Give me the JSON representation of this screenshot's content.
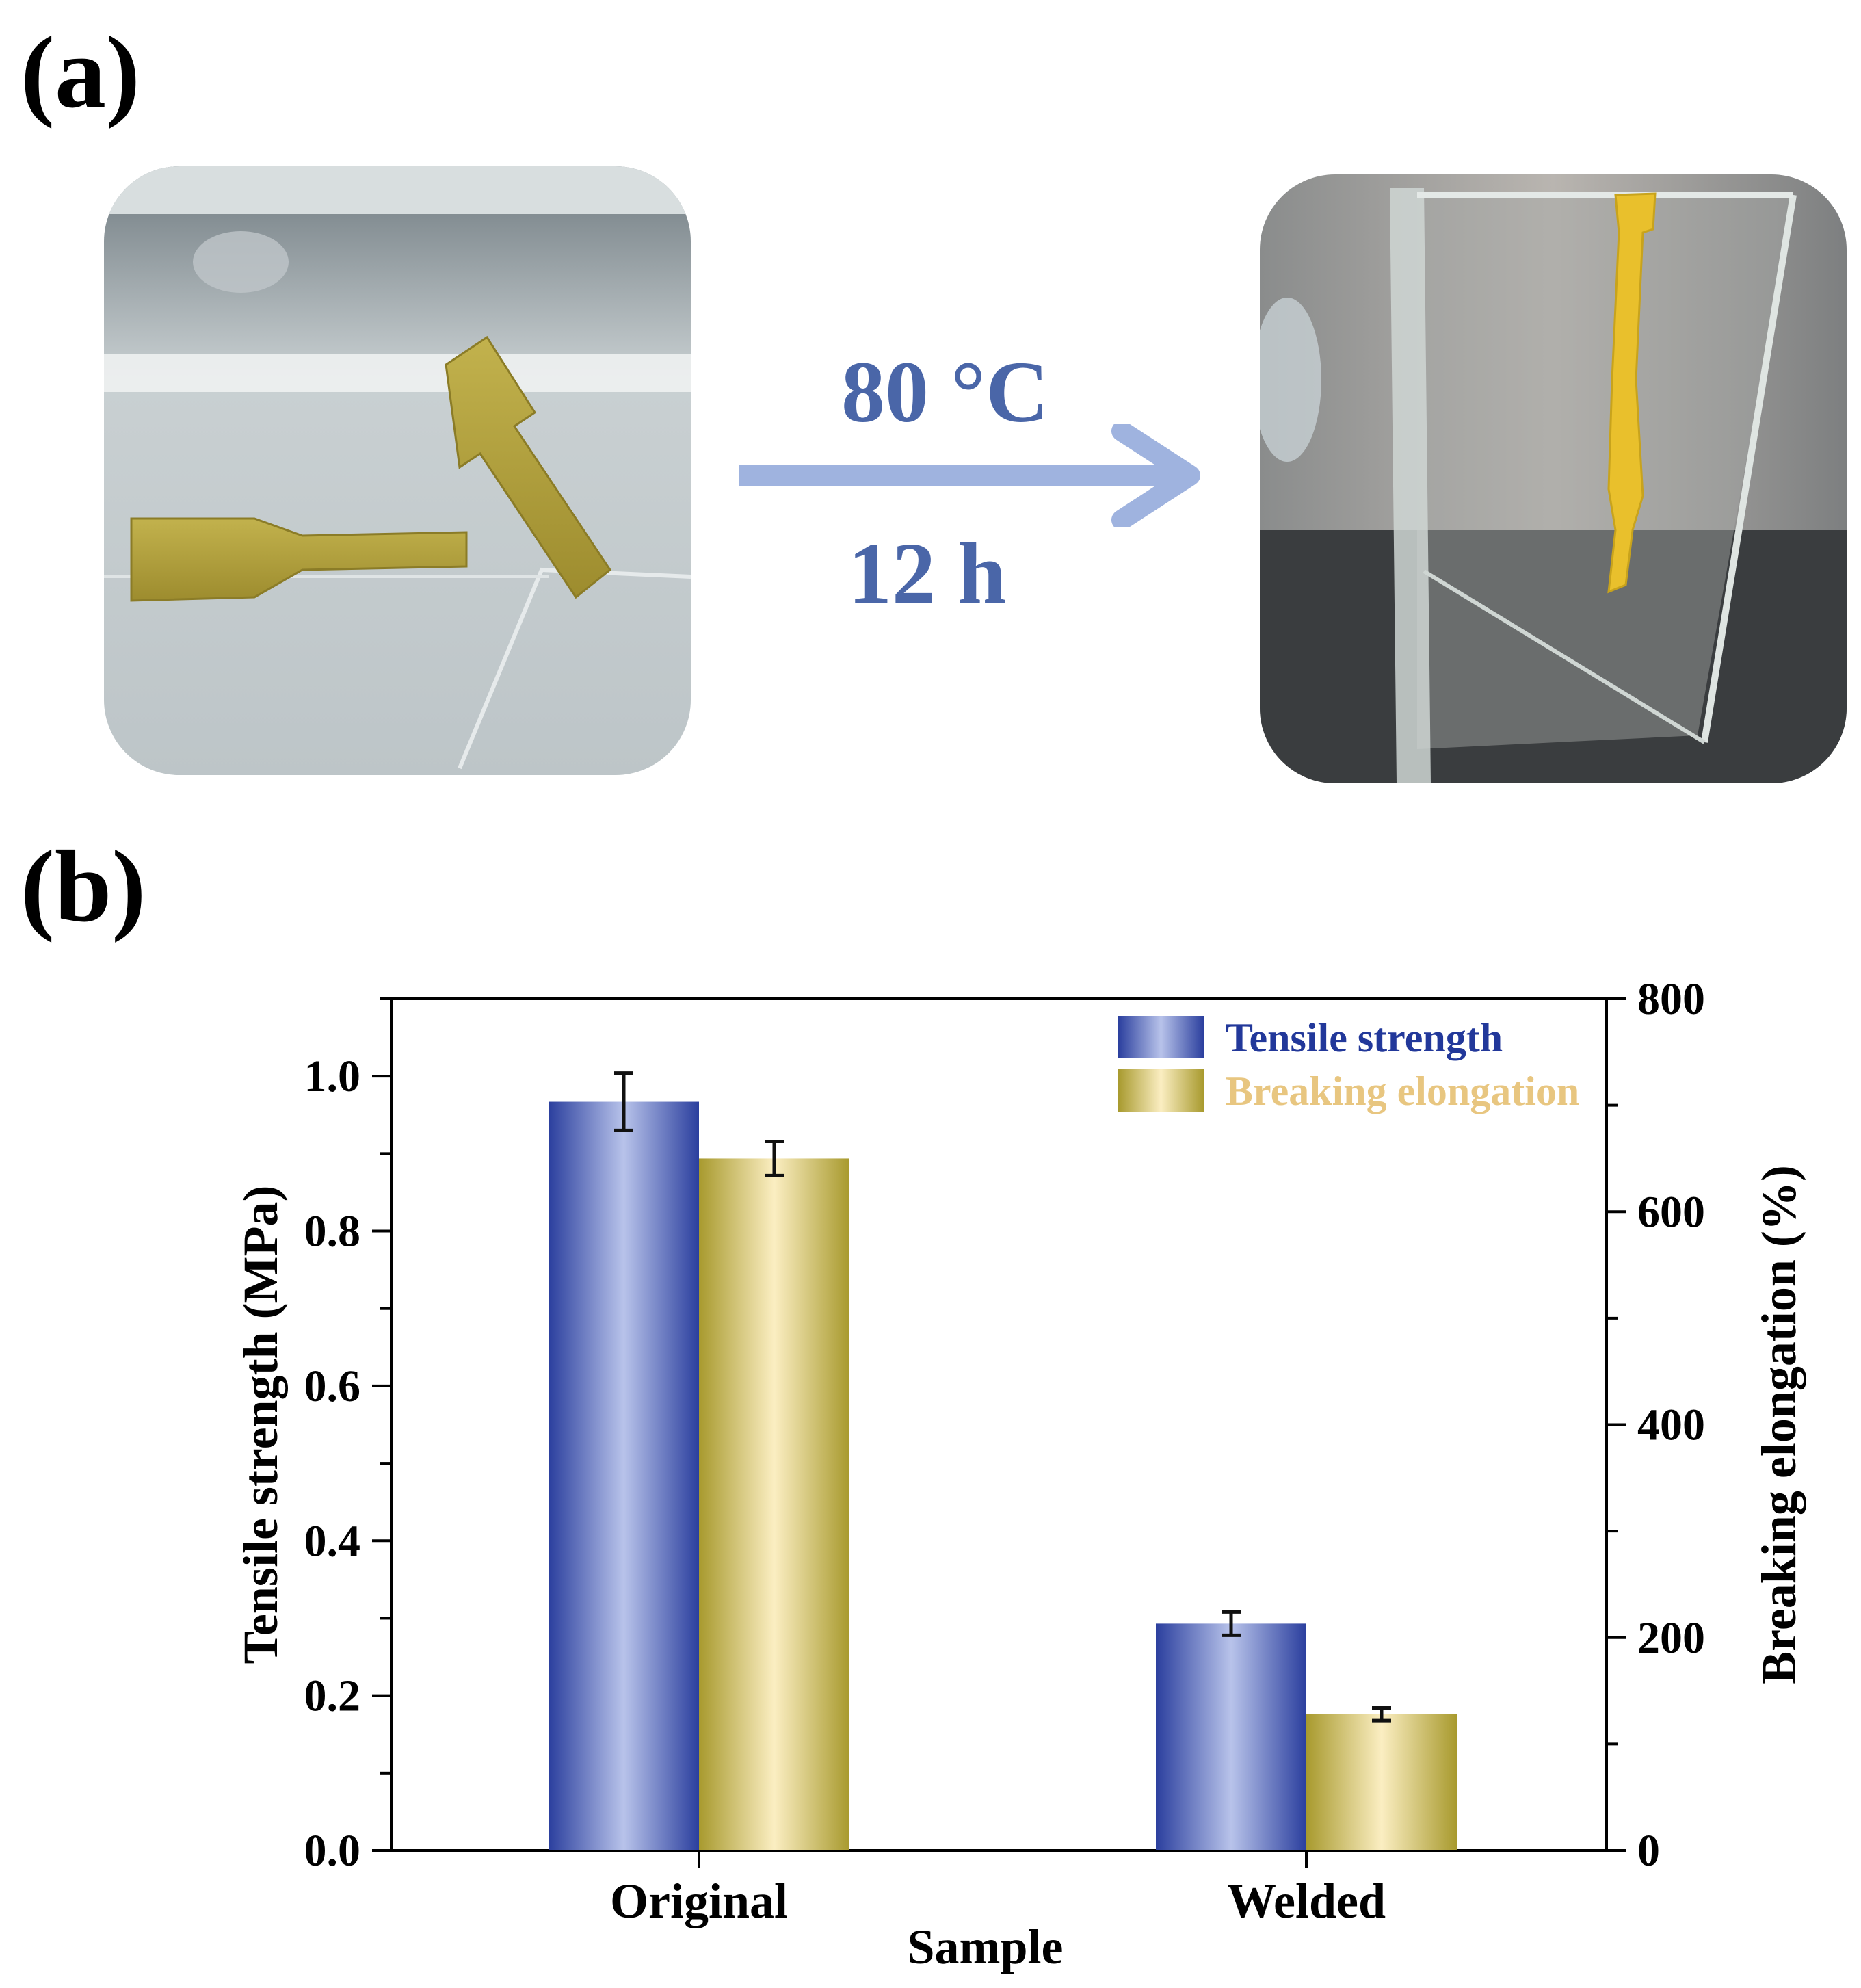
{
  "panels": {
    "a": "(a)",
    "b": "(b)"
  },
  "conditions": {
    "temperature": "80 °C",
    "time": "12 h"
  },
  "colors": {
    "tensile": "#2b3f9e",
    "tensile_light": "#b8c3ea",
    "elongation": "#a89a2e",
    "elongation_light": "#fbeec2",
    "arrow": "#9fb3df",
    "condition_text": "#4a66a8",
    "legend_tensile_text": "#22389a",
    "legend_elong_text": "#e8c680"
  },
  "chart_data": {
    "type": "bar",
    "categories": [
      "Original",
      "Welded"
    ],
    "xlabel": "Sample",
    "ylabel_left": "Tensile strength (MPa)",
    "ylabel_right": "Breaking elongation (%)",
    "ylim_left": [
      0,
      1.1
    ],
    "ylim_right": [
      0,
      800
    ],
    "yticks_left": [
      "0.0",
      "0.2",
      "0.4",
      "0.6",
      "0.8",
      "1.0"
    ],
    "yticks_right": [
      "0",
      "200",
      "400",
      "600",
      "800"
    ],
    "legend_position": "top-right",
    "series": [
      {
        "name": "Tensile strength",
        "axis": "left",
        "values": [
          0.967,
          0.293
        ],
        "errors": [
          0.037,
          0.015
        ]
      },
      {
        "name": "Breaking elongation",
        "axis": "right",
        "values": [
          650,
          128
        ],
        "errors": [
          16,
          6
        ]
      }
    ]
  }
}
